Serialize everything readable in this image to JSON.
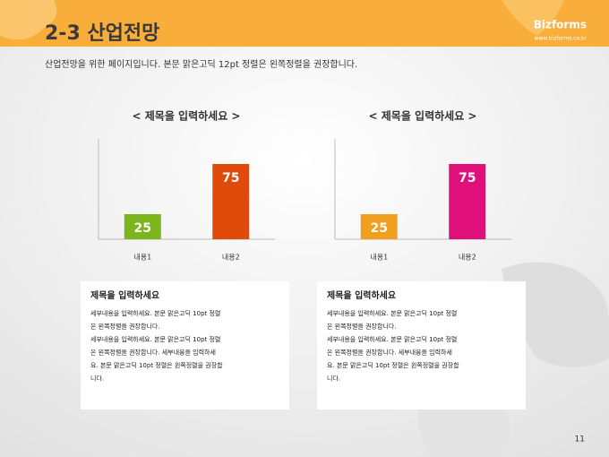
{
  "header": {
    "title": "2-3 산업전망",
    "brand": "Bizforms",
    "url": "www.bizforms.co.kr"
  },
  "subtitle": "산업전망을 위한 페이지입니다. 본문 맑은고딕 12pt 정렬은 왼쪽정렬을 권장합니다.",
  "chart_data": [
    {
      "type": "bar",
      "title": "< 제목을 입력하세요 >",
      "categories": [
        "내용1",
        "내용2"
      ],
      "values": [
        25,
        75
      ],
      "colors": [
        "#7ab51d",
        "#e04a0a"
      ],
      "ylim": [
        0,
        100
      ]
    },
    {
      "type": "bar",
      "title": "< 제목을 입력하세요 >",
      "categories": [
        "내용1",
        "내용2"
      ],
      "values": [
        25,
        75
      ],
      "colors": [
        "#f0a01e",
        "#e0107a"
      ],
      "ylim": [
        0,
        100
      ]
    }
  ],
  "boxes": [
    {
      "title": "제목을 입력하세요",
      "lines": [
        "세부내용을 입력하세요. 본문 맑은고딕 10pt 정렬",
        "은 왼쪽정렬을 권장합니다.",
        "세부내용을 입력하세요. 본문 맑은고딕 10pt 정렬",
        "은 왼쪽정렬을 권장합니다. 세부내용을 입력하세",
        "요. 본문 맑은고딕 10pt 정렬은 왼쪽정렬을 권장합",
        "니다."
      ]
    },
    {
      "title": "제목을 입력하세요",
      "lines": [
        "세부내용을 입력하세요. 본문 맑은고딕 10pt 정렬",
        "은 왼쪽정렬을 권장합니다.",
        "세부내용을 입력하세요. 본문 맑은고딕 10pt 정렬",
        "은 왼쪽정렬을 권장합니다. 세부내용을 입력하세",
        "요. 본문 맑은고딕 10pt 정렬은 왼쪽정렬을 권장합",
        "니다."
      ]
    }
  ],
  "page_number": "11"
}
